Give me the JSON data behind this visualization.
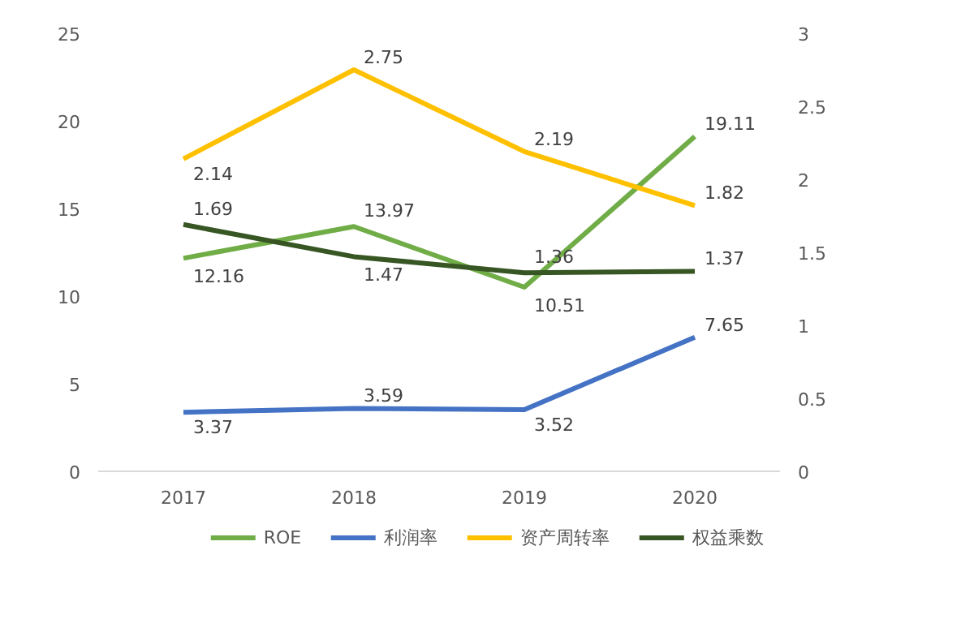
{
  "chart_data": {
    "type": "line",
    "categories": [
      "2017",
      "2018",
      "2019",
      "2020"
    ],
    "series": [
      {
        "name": "ROE",
        "color": "#70ad47",
        "values": [
          12.16,
          13.97,
          10.51,
          19.11
        ]
      },
      {
        "name": "利润率",
        "color": "#4472c4",
        "values": [
          3.37,
          3.59,
          3.52,
          7.65
        ]
      },
      {
        "name": "资产周转率",
        "color": "#ffc000",
        "values": [
          2.14,
          2.75,
          2.19,
          1.82
        ],
        "axis": "y2"
      },
      {
        "name": "权益乘数",
        "color": "#375623",
        "values": [
          1.69,
          1.47,
          1.36,
          1.37
        ],
        "axis": "y2"
      }
    ],
    "ylim": [
      0,
      25
    ],
    "yticks": [
      0,
      5,
      10,
      15,
      20,
      25
    ],
    "y2lim": [
      0,
      3
    ],
    "y2ticks": [
      0,
      0.5,
      1,
      1.5,
      2,
      2.5,
      3
    ],
    "data_labels": true,
    "legend": "bottom",
    "grid": false,
    "marker": "none",
    "line_style": "solid"
  }
}
